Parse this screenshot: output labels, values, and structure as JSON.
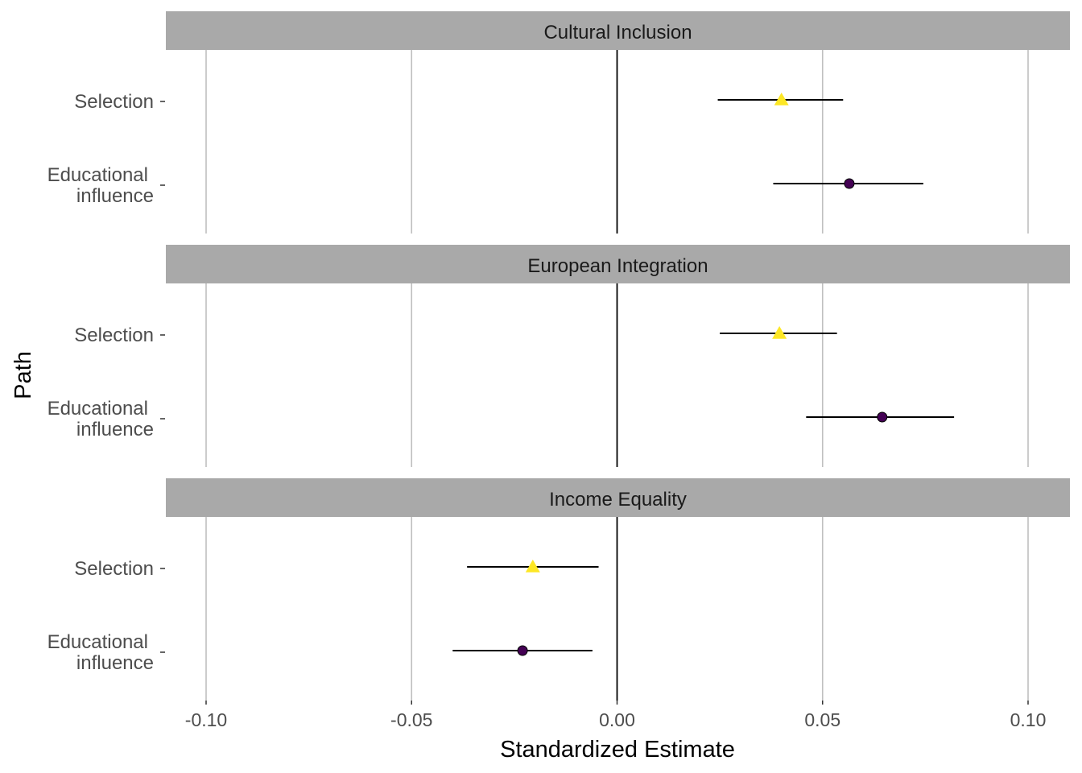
{
  "chart_data": {
    "type": "forest",
    "xlabel": "Standardized Estimate",
    "ylabel": "Path",
    "xlim": [
      -0.11,
      0.11
    ],
    "xticks": [
      -0.1,
      -0.05,
      0.0,
      0.05,
      0.1
    ],
    "xtick_labels": [
      "-0.10",
      "-0.05",
      "0.00",
      "0.05",
      "0.10"
    ],
    "reference_line": 0,
    "grid": "vertical-major",
    "categories": [
      {
        "key": "selection",
        "label": [
          "Selection"
        ],
        "marker": "triangle",
        "color": "#FDE725"
      },
      {
        "key": "educational",
        "label": [
          "Educational",
          "influence"
        ],
        "marker": "circle",
        "color": "#440154"
      }
    ],
    "panels": [
      {
        "title": "Cultural Inclusion",
        "rows": [
          {
            "path": "selection",
            "estimate": 0.04,
            "lower": 0.0245,
            "upper": 0.055
          },
          {
            "path": "educational",
            "estimate": 0.0565,
            "lower": 0.038,
            "upper": 0.0745
          }
        ]
      },
      {
        "title": "European Integration",
        "rows": [
          {
            "path": "selection",
            "estimate": 0.0395,
            "lower": 0.025,
            "upper": 0.0535
          },
          {
            "path": "educational",
            "estimate": 0.0645,
            "lower": 0.046,
            "upper": 0.082
          }
        ]
      },
      {
        "title": "Income Equality",
        "rows": [
          {
            "path": "selection",
            "estimate": -0.0205,
            "lower": -0.0365,
            "upper": -0.0045
          },
          {
            "path": "educational",
            "estimate": -0.023,
            "lower": -0.04,
            "upper": -0.006
          }
        ]
      }
    ]
  }
}
